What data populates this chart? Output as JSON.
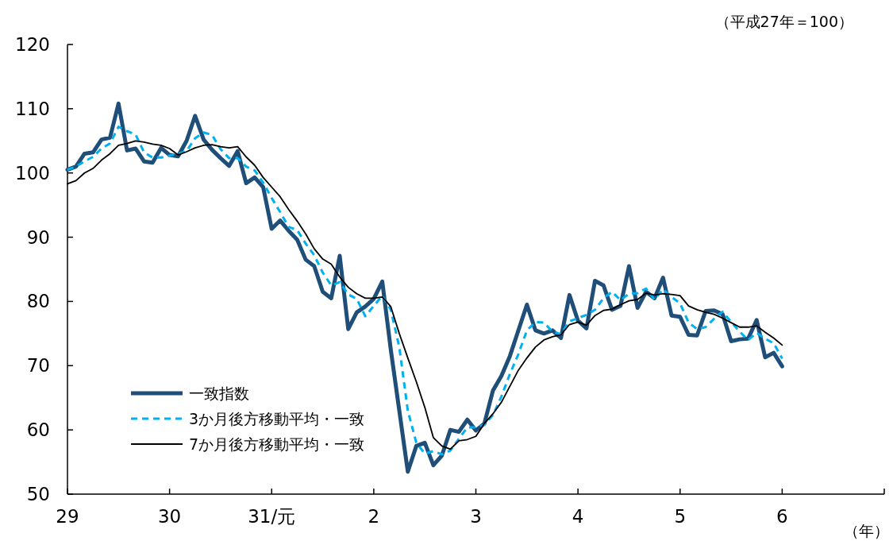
{
  "chart_data": {
    "type": "line",
    "annotations": [
      "（平成27年＝100）"
    ],
    "xlabel": "（年）",
    "categories": [
      "29",
      null,
      null,
      null,
      null,
      null,
      null,
      null,
      null,
      null,
      null,
      null,
      "30",
      null,
      null,
      null,
      null,
      null,
      null,
      null,
      null,
      null,
      null,
      null,
      "31/元",
      null,
      null,
      null,
      null,
      null,
      null,
      null,
      null,
      null,
      null,
      null,
      "2",
      null,
      null,
      null,
      null,
      null,
      null,
      null,
      null,
      null,
      null,
      null,
      "3",
      null,
      null,
      null,
      null,
      null,
      null,
      null,
      null,
      null,
      null,
      null,
      "4",
      null,
      null,
      null,
      null,
      null,
      null,
      null,
      null,
      null,
      null,
      null,
      "5",
      null,
      null,
      null,
      null,
      null,
      null,
      null,
      null,
      null,
      null,
      null,
      "6",
      null,
      null,
      null,
      null,
      null,
      null,
      null,
      null,
      null,
      null,
      null,
      null
    ],
    "ylim": [
      50,
      120
    ],
    "yticks": [
      50,
      60,
      70,
      80,
      90,
      100,
      110,
      120
    ],
    "grid": false,
    "legend": "bottom left",
    "series": [
      {
        "name": "一致指数",
        "color": "#1f4e79",
        "line_style": "solid",
        "values": [
          100.5,
          101,
          103,
          103.2,
          105.2,
          105.5,
          110.8,
          103.5,
          103.8,
          101.8,
          101.6,
          103.9,
          102.8,
          102.6,
          105,
          108.9,
          105.2,
          103.6,
          102.3,
          101.1,
          103.4,
          98.4,
          99.3,
          97.8,
          91.3,
          92.6,
          91,
          89.6,
          86.5,
          85.5,
          81.5,
          80.5,
          87.1,
          75.7,
          78.3,
          79.2,
          80.4,
          83.1,
          72.5,
          63,
          53.5,
          57.5,
          58,
          54.5,
          56,
          60,
          59.7,
          61.6,
          59.9,
          61,
          66.1,
          68.4,
          71.5,
          75.5,
          79.5,
          75.5,
          75,
          75.5,
          74.3,
          81,
          77,
          75.8,
          83.2,
          82.5,
          78.7,
          79.3,
          85.5,
          79,
          81.5,
          80.5,
          83.7,
          77.8,
          77.6,
          74.8,
          74.7,
          78.5,
          78.6,
          78,
          73.8,
          74.1,
          74.2,
          77.1,
          71.3,
          72,
          69.9,
          null,
          null,
          null,
          null,
          null,
          null,
          null,
          null,
          null,
          null,
          null,
          null
        ]
      },
      {
        "name": "3か月後方移動平均・一致",
        "color": "#00b0f0",
        "line_style": "dashed",
        "values": [
          100.5,
          101,
          101.8,
          102.5,
          103.8,
          104.6,
          107.2,
          106.5,
          106,
          103.2,
          102.4,
          102.4,
          102.7,
          103,
          103.4,
          105.4,
          106.3,
          105.9,
          103.7,
          102.3,
          102.3,
          101,
          100.4,
          98.5,
          96.1,
          93.9,
          91.6,
          91.1,
          89,
          87.2,
          84.5,
          82.5,
          83,
          81.1,
          80.4,
          77.7,
          79.3,
          80.9,
          78.7,
          72.9,
          63,
          58,
          56.3,
          56.7,
          56.2,
          56.8,
          58.6,
          60.4,
          60.4,
          60.8,
          62.3,
          65.2,
          68.7,
          71.8,
          75.5,
          76.8,
          76.7,
          75.3,
          74.9,
          76.9,
          77.4,
          77.9,
          78.7,
          80.5,
          81.5,
          80.2,
          81.2,
          81.3,
          82,
          80.3,
          81.9,
          80.7,
          79.7,
          76.7,
          75.7,
          76,
          77.3,
          78.4,
          76.8,
          75.3,
          74,
          75.1,
          74.2,
          73.5,
          71.1,
          null,
          null,
          null,
          null,
          null,
          null,
          null,
          null,
          null,
          null,
          null,
          null
        ]
      },
      {
        "name": "7か月後方移動平均・一致",
        "color": "#000000",
        "line_style": "solid",
        "values": [
          98.3,
          98.8,
          100,
          100.7,
          102,
          103,
          104.3,
          104.6,
          105,
          104.8,
          104.5,
          104.3,
          103.8,
          102.8,
          103.3,
          103.9,
          104.3,
          104.4,
          104.1,
          103.9,
          104.1,
          102.5,
          101.2,
          99.3,
          97.8,
          96.3,
          94.3,
          92.5,
          90.5,
          88.2,
          86.6,
          85.8,
          83.8,
          82.2,
          81.2,
          80.5,
          80.5,
          80.7,
          79.2,
          75,
          71.2,
          67.5,
          63.5,
          58.8,
          57.5,
          57,
          58.3,
          58.5,
          59,
          61,
          62.5,
          64.3,
          66.8,
          69.3,
          71.2,
          72.9,
          74,
          74.5,
          74.8,
          76.4,
          76.8,
          76.3,
          77.8,
          78.6,
          78.8,
          79.5,
          80.1,
          80.3,
          81.3,
          81,
          81.2,
          81.1,
          80.9,
          79.3,
          78.7,
          78.3,
          78,
          77.4,
          76.7,
          76,
          76,
          76.2,
          75.2,
          74.3,
          73.2,
          null,
          null,
          null,
          null,
          null,
          null,
          null,
          null,
          null,
          null,
          null,
          null
        ]
      }
    ]
  }
}
